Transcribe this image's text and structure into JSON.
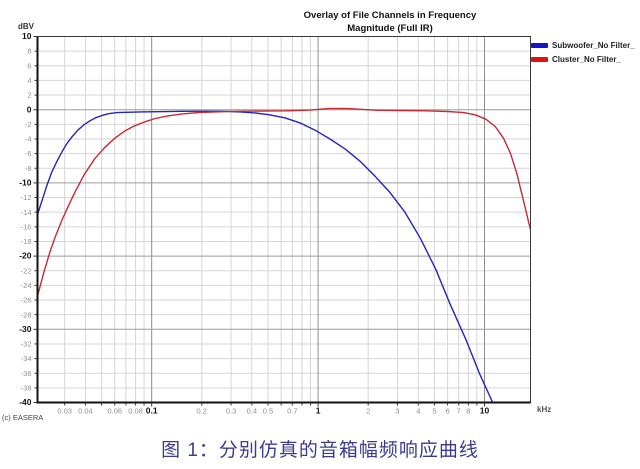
{
  "figure": {
    "title_line1": "Overlay of File Channels in Frequency",
    "title_line2": "Magnitude (Full IR)",
    "y_unit": "dBV",
    "x_unit": "kHz",
    "copyright": "(c) EASERA",
    "caption": "图 1：分别仿真的音箱幅频响应曲线",
    "caption_color": "#3c3c8e"
  },
  "chart_data": {
    "type": "line",
    "title": "Overlay of File Channels in Frequency Magnitude (Full IR)",
    "xlabel_unit": "kHz",
    "ylabel_unit": "dBV",
    "grid": "on",
    "legend_position": "top-right-outside",
    "x_axis": {
      "scale": "log",
      "range": [
        0.0206,
        18.9
      ],
      "ticks": [
        {
          "v": 0.03,
          "label": "0.03"
        },
        {
          "v": 0.04,
          "label": "0.04"
        },
        {
          "v": 0.06,
          "label": "0.06"
        },
        {
          "v": 0.08,
          "label": "0.08"
        },
        {
          "v": 0.1,
          "label": "0.1",
          "bold": true
        },
        {
          "v": 0.2,
          "label": "0.2"
        },
        {
          "v": 0.3,
          "label": "0.3"
        },
        {
          "v": 0.4,
          "label": "0.4"
        },
        {
          "v": 0.5,
          "label": "0.5"
        },
        {
          "v": 0.7,
          "label": "0.7"
        },
        {
          "v": 1,
          "label": "1",
          "bold": true
        },
        {
          "v": 2,
          "label": "2"
        },
        {
          "v": 3,
          "label": "3"
        },
        {
          "v": 4,
          "label": "4"
        },
        {
          "v": 5,
          "label": "5"
        },
        {
          "v": 6,
          "label": "6"
        },
        {
          "v": 7,
          "label": "7"
        },
        {
          "v": 8,
          "label": "8"
        },
        {
          "v": 10,
          "label": "10",
          "bold": true
        }
      ]
    },
    "y_axis": {
      "range": [
        -40,
        10
      ],
      "tick_step": 2,
      "bold_step": 10
    },
    "series": [
      {
        "id": "subwoofer",
        "name": "Subwoofer_No Filter_",
        "color": "#2525b8",
        "swatch_color": "#1414cc",
        "points": [
          [
            0.0207,
            -14.2
          ],
          [
            0.022,
            -12.3
          ],
          [
            0.0235,
            -10.3
          ],
          [
            0.025,
            -8.6
          ],
          [
            0.027,
            -7.0
          ],
          [
            0.029,
            -5.7
          ],
          [
            0.031,
            -4.6
          ],
          [
            0.0335,
            -3.6
          ],
          [
            0.036,
            -2.8
          ],
          [
            0.039,
            -2.1
          ],
          [
            0.042,
            -1.6
          ],
          [
            0.046,
            -1.1
          ],
          [
            0.05,
            -0.8
          ],
          [
            0.055,
            -0.55
          ],
          [
            0.062,
            -0.4
          ],
          [
            0.07,
            -0.35
          ],
          [
            0.085,
            -0.3
          ],
          [
            0.11,
            -0.28
          ],
          [
            0.15,
            -0.22
          ],
          [
            0.2,
            -0.2
          ],
          [
            0.27,
            -0.22
          ],
          [
            0.34,
            -0.3
          ],
          [
            0.42,
            -0.45
          ],
          [
            0.51,
            -0.7
          ],
          [
            0.63,
            -1.1
          ],
          [
            0.78,
            -1.8
          ],
          [
            0.96,
            -2.8
          ],
          [
            1.18,
            -4.0
          ],
          [
            1.46,
            -5.4
          ],
          [
            1.8,
            -7.1
          ],
          [
            2.2,
            -9.1
          ],
          [
            2.7,
            -11.3
          ],
          [
            3.3,
            -13.9
          ],
          [
            4.1,
            -17.5
          ],
          [
            5.1,
            -21.8
          ],
          [
            6.2,
            -26.5
          ],
          [
            7.7,
            -31.3
          ],
          [
            9.4,
            -36.2
          ],
          [
            11.2,
            -40.0
          ]
        ]
      },
      {
        "id": "cluster",
        "name": "Cluster_No Filter_",
        "color": "#c62a34",
        "swatch_color": "#e01212",
        "points": [
          [
            0.0207,
            -25.3
          ],
          [
            0.0225,
            -22.2
          ],
          [
            0.0245,
            -19.4
          ],
          [
            0.0265,
            -17.2
          ],
          [
            0.029,
            -15.0
          ],
          [
            0.0315,
            -13.2
          ],
          [
            0.0345,
            -11.3
          ],
          [
            0.0395,
            -8.8
          ],
          [
            0.0455,
            -6.7
          ],
          [
            0.052,
            -5.2
          ],
          [
            0.06,
            -3.9
          ],
          [
            0.069,
            -2.9
          ],
          [
            0.079,
            -2.2
          ],
          [
            0.09,
            -1.7
          ],
          [
            0.105,
            -1.2
          ],
          [
            0.125,
            -0.85
          ],
          [
            0.15,
            -0.6
          ],
          [
            0.19,
            -0.4
          ],
          [
            0.24,
            -0.3
          ],
          [
            0.32,
            -0.22
          ],
          [
            0.45,
            -0.18
          ],
          [
            0.65,
            -0.15
          ],
          [
            0.9,
            -0.05
          ],
          [
            1.15,
            0.15
          ],
          [
            1.45,
            0.18
          ],
          [
            1.8,
            0.05
          ],
          [
            2.3,
            -0.08
          ],
          [
            3.2,
            -0.12
          ],
          [
            4.5,
            -0.15
          ],
          [
            6.0,
            -0.25
          ],
          [
            7.5,
            -0.4
          ],
          [
            8.8,
            -0.7
          ],
          [
            10.2,
            -1.3
          ],
          [
            11.6,
            -2.3
          ],
          [
            13.0,
            -3.9
          ],
          [
            14.3,
            -5.9
          ],
          [
            15.6,
            -8.6
          ],
          [
            16.8,
            -11.6
          ],
          [
            17.9,
            -14.2
          ],
          [
            18.85,
            -16.3
          ]
        ]
      }
    ]
  }
}
